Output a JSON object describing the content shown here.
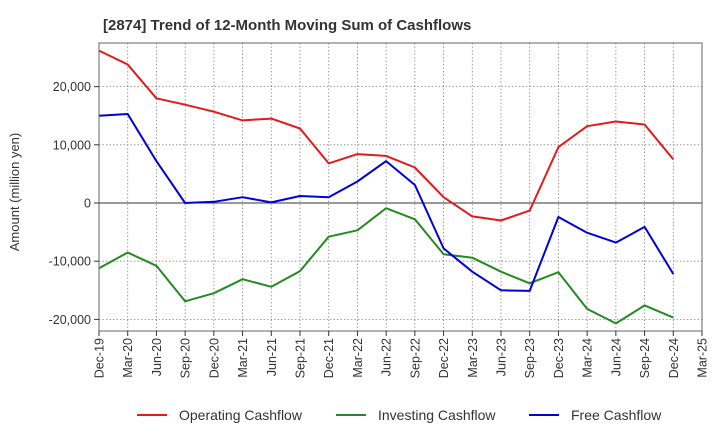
{
  "chart_data": {
    "type": "line",
    "title": "[2874]  Trend of 12-Month Moving Sum of Cashflows",
    "xlabel": "",
    "ylabel": "Amount (million yen)",
    "ylim": [
      -22000,
      27500
    ],
    "yticks": [
      -20000,
      -10000,
      0,
      10000,
      20000
    ],
    "ytick_labels": [
      "-20,000",
      "-10,000",
      "0",
      "10,000",
      "20,000"
    ],
    "x_ticks": [
      "Dec-19",
      "Mar-20",
      "Jun-20",
      "Sep-20",
      "Dec-20",
      "Mar-21",
      "Jun-21",
      "Sep-21",
      "Dec-21",
      "Mar-22",
      "Jun-22",
      "Sep-22",
      "Dec-22",
      "Mar-23",
      "Jun-23",
      "Sep-23",
      "Dec-23",
      "Mar-24",
      "Jun-24",
      "Sep-24",
      "Dec-24",
      "Mar-25"
    ],
    "grid": true,
    "legend_position": "bottom",
    "series": [
      {
        "name": "Operating Cashflow",
        "color": "#e31a1c",
        "values": [
          26200,
          23800,
          18000,
          16900,
          15700,
          14200,
          14500,
          12800,
          6800,
          8400,
          8100,
          6100,
          1000,
          -2300,
          -3000,
          -1300,
          9600,
          13200,
          14000,
          13500,
          7500
        ]
      },
      {
        "name": "Investing Cashflow",
        "color": "#228b22",
        "values": [
          -11200,
          -8500,
          -10800,
          -16900,
          -15500,
          -13100,
          -14400,
          -11700,
          -5800,
          -4700,
          -900,
          -2800,
          -8800,
          -9400,
          -11800,
          -13800,
          -11900,
          -18200,
          -20700,
          -17600,
          -19700
        ]
      },
      {
        "name": "Free Cashflow",
        "color": "#0000dd",
        "values": [
          15000,
          15300,
          7200,
          0,
          200,
          1000,
          100,
          1200,
          1000,
          3700,
          7200,
          3100,
          -7800,
          -11800,
          -15000,
          -15100,
          -2400,
          -5100,
          -6800,
          -4100,
          -12200
        ]
      }
    ]
  }
}
